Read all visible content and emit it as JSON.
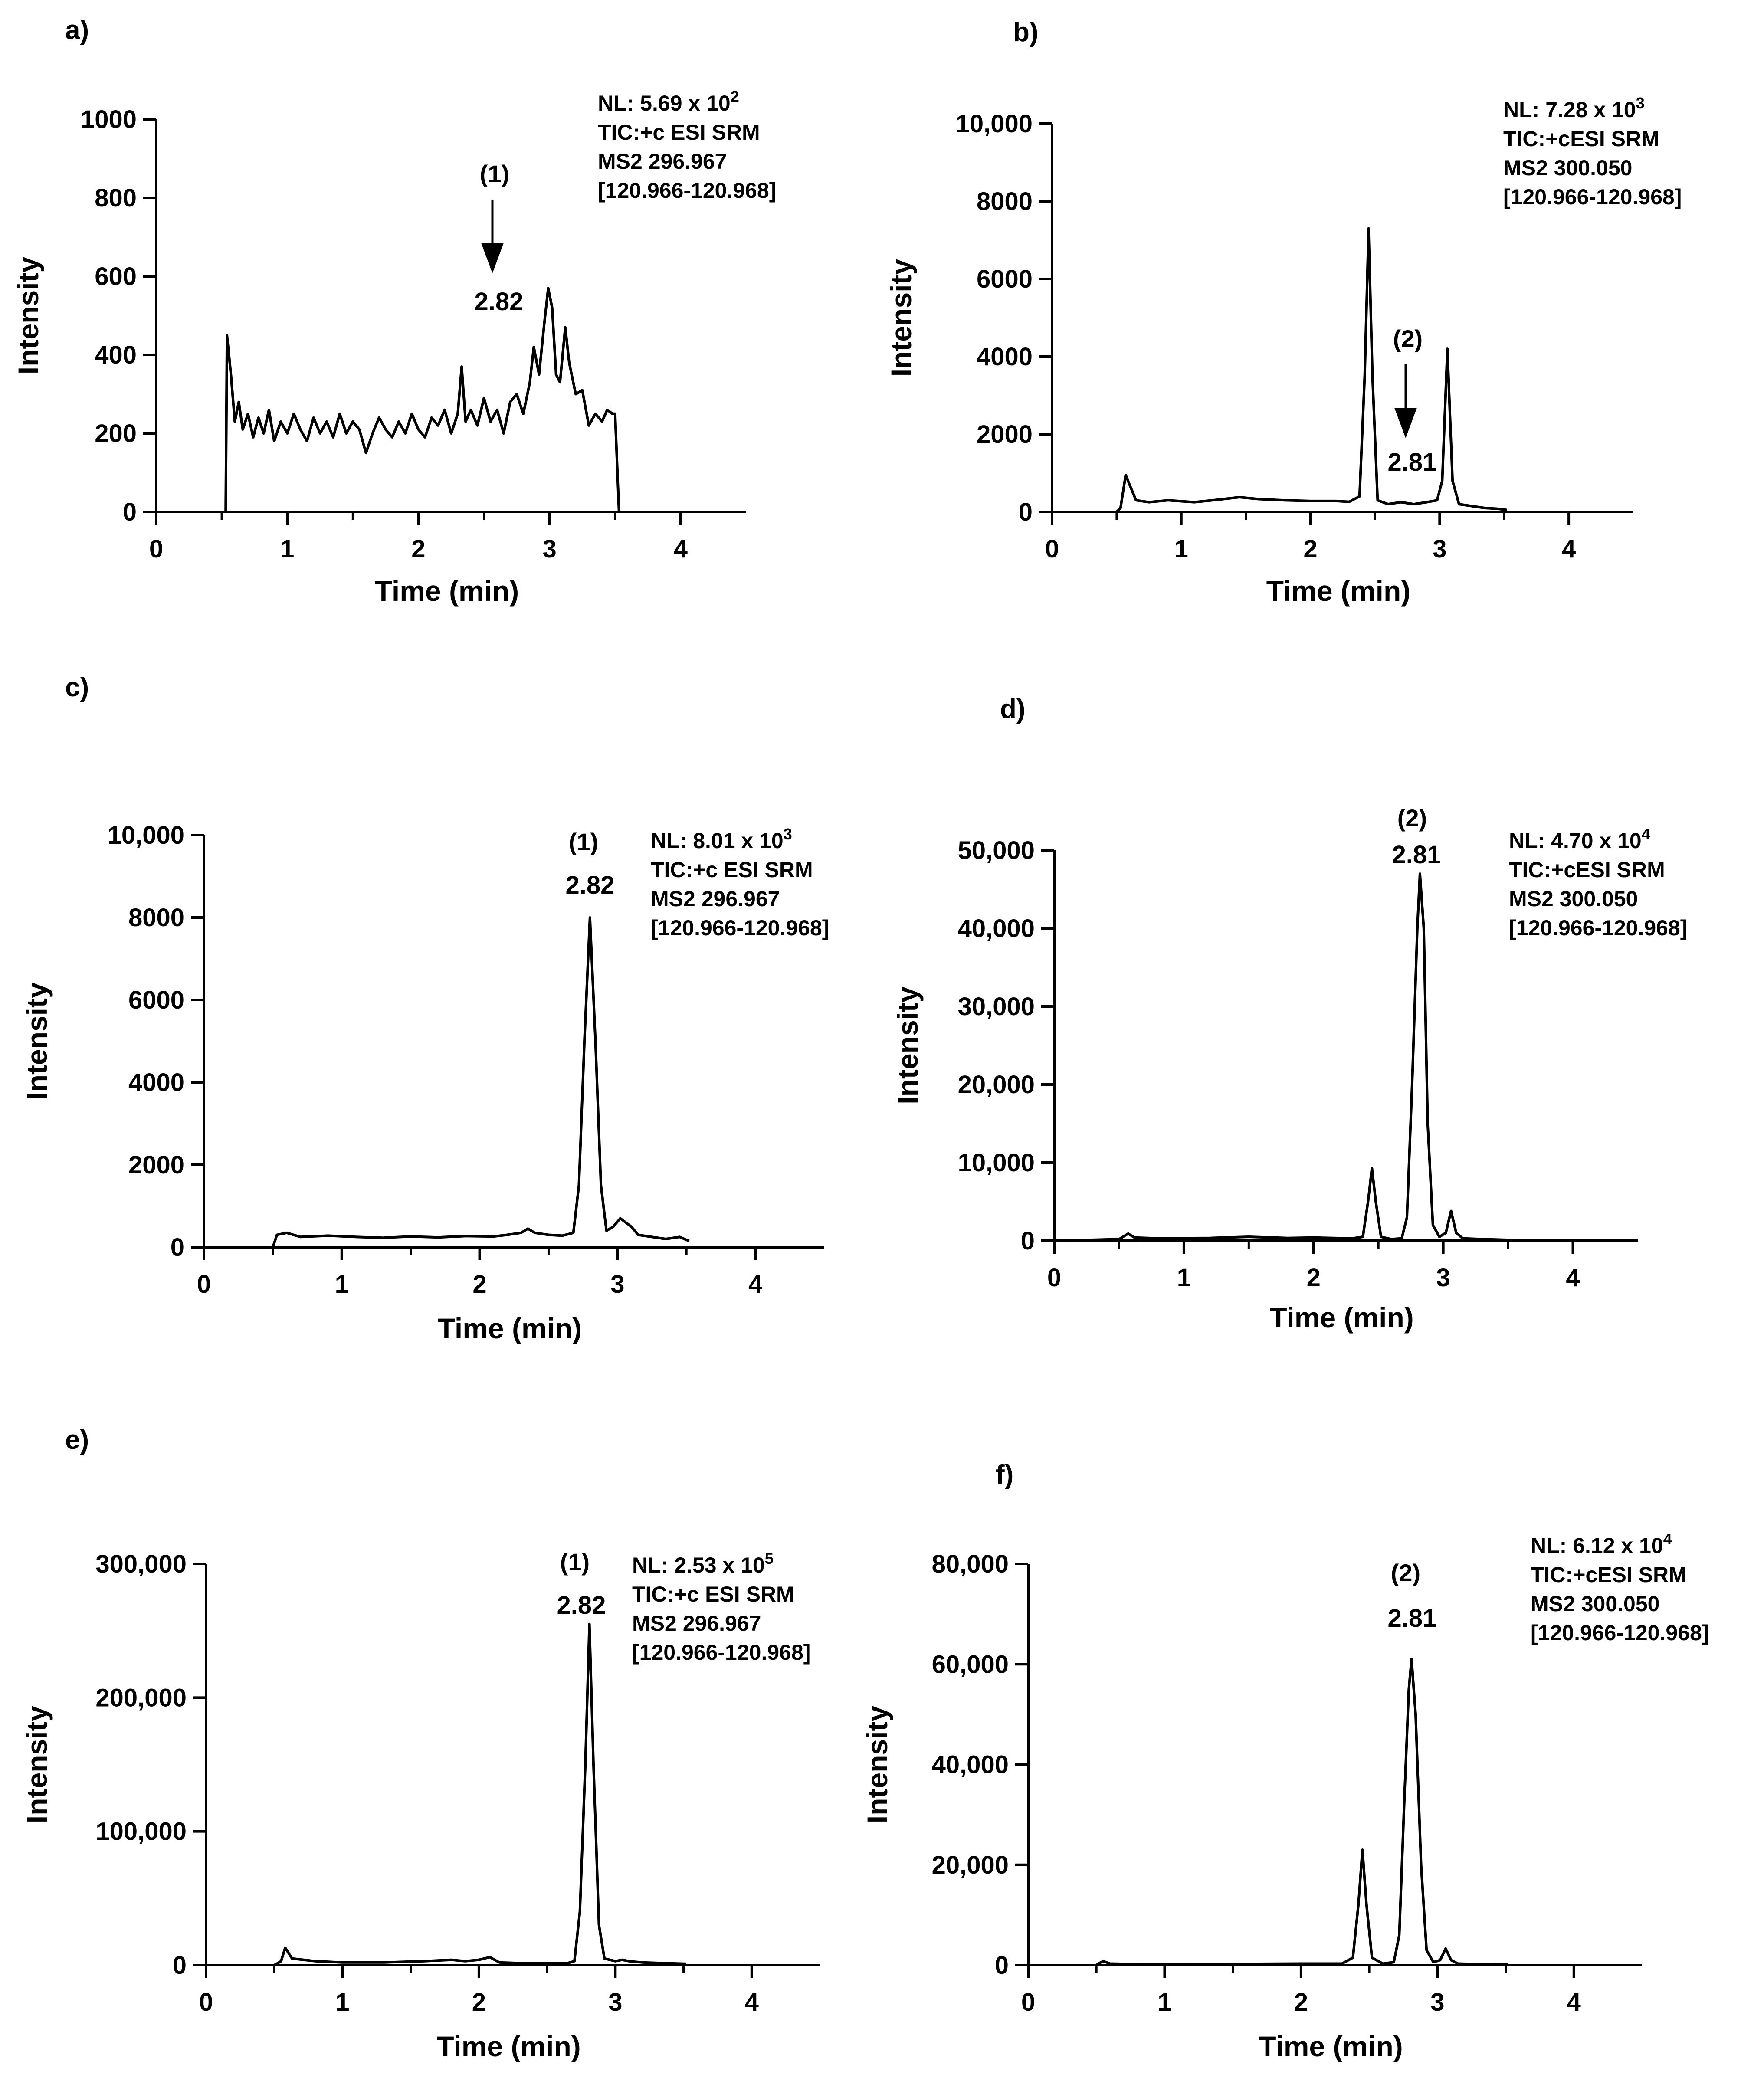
{
  "figure": {
    "panels": [
      "a)",
      "b)",
      "c)",
      "d)",
      "e)",
      "f)"
    ]
  },
  "chart_data": [
    {
      "panel": "a)",
      "type": "line",
      "xlabel": "Time (min)",
      "ylabel": "Intensity",
      "xlim": [
        0,
        4.5
      ],
      "ylim": [
        0,
        1000
      ],
      "xticks": [
        "0",
        "1",
        "2",
        "3",
        "4"
      ],
      "yticks": [
        "0",
        "200",
        "400",
        "600",
        "800",
        "1000"
      ],
      "info": [
        "NL: 5.69 x 10",
        "2",
        "TIC:+c ESI SRM",
        "MS2 296.967",
        "[120.966-120.968]"
      ],
      "annotation": {
        "peak_id": "(1)",
        "rt": "2.82",
        "arrow": true
      },
      "series": [
        {
          "name": "trace",
          "points": [
            [
              0.48,
              0
            ],
            [
              0.53,
              0
            ],
            [
              0.54,
              450
            ],
            [
              0.57,
              350
            ],
            [
              0.6,
              230
            ],
            [
              0.63,
              280
            ],
            [
              0.66,
              210
            ],
            [
              0.7,
              250
            ],
            [
              0.74,
              190
            ],
            [
              0.78,
              240
            ],
            [
              0.82,
              200
            ],
            [
              0.86,
              260
            ],
            [
              0.9,
              180
            ],
            [
              0.95,
              230
            ],
            [
              1.0,
              200
            ],
            [
              1.05,
              250
            ],
            [
              1.1,
              210
            ],
            [
              1.15,
              180
            ],
            [
              1.2,
              240
            ],
            [
              1.25,
              200
            ],
            [
              1.3,
              230
            ],
            [
              1.35,
              190
            ],
            [
              1.4,
              250
            ],
            [
              1.45,
              200
            ],
            [
              1.5,
              230
            ],
            [
              1.55,
              210
            ],
            [
              1.6,
              150
            ],
            [
              1.65,
              200
            ],
            [
              1.7,
              240
            ],
            [
              1.75,
              210
            ],
            [
              1.8,
              190
            ],
            [
              1.85,
              230
            ],
            [
              1.9,
              200
            ],
            [
              1.95,
              250
            ],
            [
              2.0,
              210
            ],
            [
              2.05,
              190
            ],
            [
              2.1,
              240
            ],
            [
              2.15,
              220
            ],
            [
              2.2,
              260
            ],
            [
              2.25,
              200
            ],
            [
              2.3,
              250
            ],
            [
              2.33,
              370
            ],
            [
              2.36,
              230
            ],
            [
              2.4,
              260
            ],
            [
              2.45,
              220
            ],
            [
              2.5,
              290
            ],
            [
              2.55,
              230
            ],
            [
              2.6,
              260
            ],
            [
              2.65,
              200
            ],
            [
              2.7,
              280
            ],
            [
              2.75,
              300
            ],
            [
              2.8,
              250
            ],
            [
              2.85,
              330
            ],
            [
              2.88,
              420
            ],
            [
              2.92,
              350
            ],
            [
              2.96,
              480
            ],
            [
              2.99,
              570
            ],
            [
              3.02,
              520
            ],
            [
              3.05,
              350
            ],
            [
              3.08,
              330
            ],
            [
              3.12,
              470
            ],
            [
              3.15,
              380
            ],
            [
              3.2,
              300
            ],
            [
              3.25,
              310
            ],
            [
              3.3,
              220
            ],
            [
              3.35,
              250
            ],
            [
              3.4,
              230
            ],
            [
              3.44,
              260
            ],
            [
              3.48,
              250
            ],
            [
              3.5,
              250
            ],
            [
              3.53,
              0
            ]
          ]
        }
      ]
    },
    {
      "panel": "b)",
      "type": "line",
      "xlabel": "Time (min)",
      "ylabel": "Intensity",
      "xlim": [
        0,
        4.5
      ],
      "ylim": [
        0,
        10000
      ],
      "xticks": [
        "0",
        "1",
        "2",
        "3",
        "4"
      ],
      "yticks": [
        "0",
        "2000",
        "4000",
        "6000",
        "8000",
        "10,000"
      ],
      "info": [
        "NL: 7.28 x 10",
        "3",
        "TIC:+cESI SRM",
        "MS2 300.050",
        "[120.966-120.968]"
      ],
      "annotation": {
        "peak_id": "(2)",
        "rt": "2.81",
        "arrow": true
      },
      "series": [
        {
          "name": "trace",
          "points": [
            [
              0.5,
              0
            ],
            [
              0.53,
              100
            ],
            [
              0.57,
              950
            ],
            [
              0.6,
              700
            ],
            [
              0.65,
              300
            ],
            [
              0.75,
              250
            ],
            [
              0.9,
              300
            ],
            [
              1.1,
              250
            ],
            [
              1.3,
              320
            ],
            [
              1.45,
              380
            ],
            [
              1.6,
              330
            ],
            [
              1.8,
              300
            ],
            [
              2.0,
              280
            ],
            [
              2.2,
              280
            ],
            [
              2.3,
              260
            ],
            [
              2.38,
              400
            ],
            [
              2.42,
              3500
            ],
            [
              2.45,
              7300
            ],
            [
              2.48,
              3500
            ],
            [
              2.52,
              300
            ],
            [
              2.6,
              200
            ],
            [
              2.7,
              250
            ],
            [
              2.8,
              200
            ],
            [
              2.9,
              250
            ],
            [
              2.98,
              300
            ],
            [
              3.02,
              800
            ],
            [
              3.06,
              4200
            ],
            [
              3.1,
              800
            ],
            [
              3.15,
              200
            ],
            [
              3.25,
              150
            ],
            [
              3.35,
              100
            ],
            [
              3.45,
              80
            ],
            [
              3.52,
              50
            ]
          ]
        }
      ]
    },
    {
      "panel": "c)",
      "type": "line",
      "xlabel": "Time (min)",
      "ylabel": "Intensity",
      "xlim": [
        0,
        4.5
      ],
      "ylim": [
        0,
        10000
      ],
      "xticks": [
        "0",
        "1",
        "2",
        "3",
        "4"
      ],
      "yticks": [
        "0",
        "2000",
        "4000",
        "6000",
        "8000",
        "10,000"
      ],
      "info": [
        "NL: 8.01 x 10",
        "3",
        "TIC:+c ESI SRM",
        "MS2 296.967",
        "[120.966-120.968]"
      ],
      "annotation": {
        "peak_id": "(1)",
        "rt": "2.82",
        "arrow": false
      },
      "series": [
        {
          "name": "trace",
          "points": [
            [
              0.5,
              0
            ],
            [
              0.53,
              300
            ],
            [
              0.6,
              350
            ],
            [
              0.7,
              250
            ],
            [
              0.9,
              280
            ],
            [
              1.1,
              250
            ],
            [
              1.3,
              230
            ],
            [
              1.5,
              260
            ],
            [
              1.7,
              240
            ],
            [
              1.9,
              270
            ],
            [
              2.1,
              260
            ],
            [
              2.2,
              300
            ],
            [
              2.3,
              350
            ],
            [
              2.35,
              450
            ],
            [
              2.4,
              350
            ],
            [
              2.5,
              300
            ],
            [
              2.6,
              280
            ],
            [
              2.68,
              350
            ],
            [
              2.72,
              1500
            ],
            [
              2.76,
              5000
            ],
            [
              2.8,
              8000
            ],
            [
              2.84,
              5000
            ],
            [
              2.88,
              1500
            ],
            [
              2.92,
              400
            ],
            [
              2.97,
              500
            ],
            [
              3.02,
              700
            ],
            [
              3.06,
              600
            ],
            [
              3.1,
              500
            ],
            [
              3.15,
              300
            ],
            [
              3.25,
              250
            ],
            [
              3.35,
              200
            ],
            [
              3.45,
              250
            ],
            [
              3.52,
              150
            ]
          ]
        }
      ]
    },
    {
      "panel": "d)",
      "type": "line",
      "xlabel": "Time (min)",
      "ylabel": "Intensity",
      "xlim": [
        0,
        4.5
      ],
      "ylim": [
        0,
        50000
      ],
      "xticks": [
        "0",
        "1",
        "2",
        "3",
        "4"
      ],
      "yticks": [
        "0",
        "10,000",
        "20,000",
        "30,000",
        "40,000",
        "50,000"
      ],
      "info": [
        "NL: 4.70 x 10",
        "4",
        "TIC:+cESI SRM",
        "MS2 300.050",
        "[120.966-120.968]"
      ],
      "annotation": {
        "peak_id": "(2)",
        "rt": "2.81",
        "arrow": false
      },
      "series": [
        {
          "name": "trace",
          "points": [
            [
              0.0,
              0
            ],
            [
              0.5,
              200
            ],
            [
              0.57,
              900
            ],
            [
              0.62,
              400
            ],
            [
              0.8,
              300
            ],
            [
              1.2,
              350
            ],
            [
              1.5,
              500
            ],
            [
              1.8,
              350
            ],
            [
              2.0,
              400
            ],
            [
              2.3,
              300
            ],
            [
              2.38,
              500
            ],
            [
              2.42,
              5000
            ],
            [
              2.45,
              9300
            ],
            [
              2.48,
              5000
            ],
            [
              2.52,
              500
            ],
            [
              2.6,
              200
            ],
            [
              2.68,
              300
            ],
            [
              2.72,
              3000
            ],
            [
              2.76,
              20000
            ],
            [
              2.8,
              40000
            ],
            [
              2.82,
              47000
            ],
            [
              2.85,
              40000
            ],
            [
              2.88,
              15000
            ],
            [
              2.92,
              2000
            ],
            [
              2.97,
              500
            ],
            [
              3.02,
              1000
            ],
            [
              3.06,
              3800
            ],
            [
              3.1,
              1000
            ],
            [
              3.15,
              300
            ],
            [
              3.3,
              200
            ],
            [
              3.52,
              100
            ]
          ]
        }
      ]
    },
    {
      "panel": "e)",
      "type": "line",
      "xlabel": "Time (min)",
      "ylabel": "Intensity",
      "xlim": [
        0,
        4.5
      ],
      "ylim": [
        0,
        300000
      ],
      "xticks": [
        "0",
        "1",
        "2",
        "3",
        "4"
      ],
      "yticks": [
        "0",
        "100,000",
        "200,000",
        "300,000"
      ],
      "info": [
        "NL: 2.53 x 10",
        "5",
        "TIC:+c ESI SRM",
        "MS2 296.967",
        "[120.966-120.968]"
      ],
      "annotation": {
        "peak_id": "(1)",
        "rt": "2.82",
        "arrow": false
      },
      "series": [
        {
          "name": "trace",
          "points": [
            [
              0.5,
              0
            ],
            [
              0.55,
              3000
            ],
            [
              0.58,
              13000
            ],
            [
              0.63,
              5000
            ],
            [
              0.8,
              3000
            ],
            [
              1.0,
              2000
            ],
            [
              1.3,
              2000
            ],
            [
              1.6,
              3000
            ],
            [
              1.8,
              4000
            ],
            [
              1.9,
              3000
            ],
            [
              2.0,
              4000
            ],
            [
              2.08,
              6000
            ],
            [
              2.15,
              2000
            ],
            [
              2.3,
              1500
            ],
            [
              2.5,
              1500
            ],
            [
              2.65,
              1500
            ],
            [
              2.7,
              3000
            ],
            [
              2.74,
              40000
            ],
            [
              2.78,
              150000
            ],
            [
              2.81,
              255000
            ],
            [
              2.84,
              150000
            ],
            [
              2.88,
              30000
            ],
            [
              2.92,
              5000
            ],
            [
              3.0,
              3000
            ],
            [
              3.05,
              4000
            ],
            [
              3.1,
              3000
            ],
            [
              3.2,
              2000
            ],
            [
              3.35,
              1500
            ],
            [
              3.52,
              1000
            ]
          ]
        }
      ]
    },
    {
      "panel": "f)",
      "type": "line",
      "xlabel": "Time (min)",
      "ylabel": "Intensity",
      "xlim": [
        0,
        4.5
      ],
      "ylim": [
        0,
        80000
      ],
      "xticks": [
        "0",
        "1",
        "2",
        "3",
        "4"
      ],
      "yticks": [
        "0",
        "20,000",
        "40,000",
        "60,000",
        "80,000"
      ],
      "info": [
        "NL: 6.12 x 10",
        "4",
        "TIC:+cESI SRM",
        "MS2 300.050",
        "[120.966-120.968]"
      ],
      "annotation": {
        "peak_id": "(2)",
        "rt": "2.81",
        "arrow": false
      },
      "series": [
        {
          "name": "trace",
          "points": [
            [
              0.5,
              100
            ],
            [
              0.55,
              800
            ],
            [
              0.6,
              300
            ],
            [
              0.8,
              200
            ],
            [
              1.2,
              250
            ],
            [
              1.6,
              250
            ],
            [
              2.0,
              300
            ],
            [
              2.3,
              300
            ],
            [
              2.38,
              1500
            ],
            [
              2.42,
              12000
            ],
            [
              2.45,
              23000
            ],
            [
              2.48,
              12000
            ],
            [
              2.52,
              1500
            ],
            [
              2.6,
              300
            ],
            [
              2.68,
              600
            ],
            [
              2.72,
              6000
            ],
            [
              2.76,
              35000
            ],
            [
              2.79,
              55000
            ],
            [
              2.81,
              61000
            ],
            [
              2.84,
              50000
            ],
            [
              2.88,
              20000
            ],
            [
              2.92,
              3000
            ],
            [
              2.97,
              600
            ],
            [
              3.02,
              1000
            ],
            [
              3.06,
              3300
            ],
            [
              3.1,
              1000
            ],
            [
              3.15,
              300
            ],
            [
              3.3,
              200
            ],
            [
              3.52,
              100
            ]
          ]
        }
      ]
    }
  ]
}
